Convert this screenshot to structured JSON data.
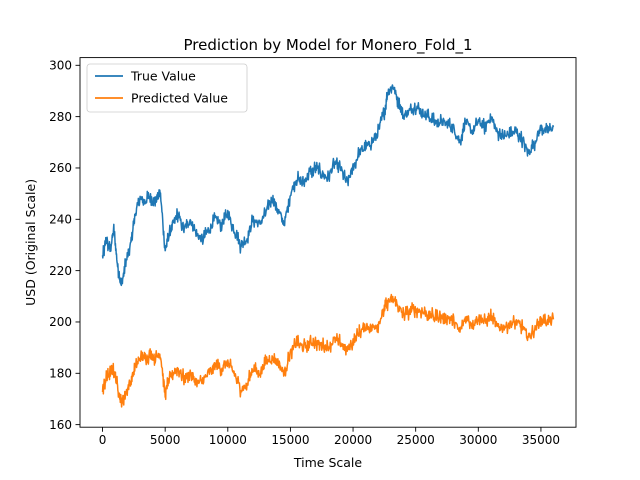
{
  "chart_data": {
    "type": "line",
    "title": "Prediction by Model for Monero_Fold_1",
    "xlabel": "Time Scale",
    "ylabel": "USD (Original Scale)",
    "xlim": [
      -1800,
      37800
    ],
    "ylim": [
      159,
      303
    ],
    "xticks": [
      0,
      5000,
      10000,
      15000,
      20000,
      25000,
      30000,
      35000
    ],
    "yticks": [
      160,
      180,
      200,
      220,
      240,
      260,
      280,
      300
    ],
    "legend_position": "upper-left",
    "grid": false,
    "series": [
      {
        "name": "True Value",
        "color": "#1f77b4",
        "x": [
          0,
          300,
          600,
          900,
          1200,
          1500,
          1800,
          2200,
          2600,
          3000,
          3400,
          3800,
          4200,
          4600,
          5000,
          5200,
          5600,
          6000,
          6500,
          7000,
          7500,
          8000,
          8500,
          9000,
          9500,
          10000,
          10500,
          11000,
          11500,
          12000,
          12500,
          13000,
          13500,
          14000,
          14500,
          15000,
          15500,
          16000,
          16500,
          17000,
          17500,
          18000,
          18500,
          19000,
          19500,
          20000,
          20500,
          21000,
          21500,
          22000,
          22500,
          22800,
          23200,
          23600,
          24000,
          24500,
          25000,
          25500,
          26000,
          26500,
          27000,
          27500,
          28000,
          28500,
          29000,
          29500,
          30000,
          30500,
          31000,
          31500,
          32000,
          32500,
          33000,
          33500,
          34000,
          34500,
          35000,
          35500,
          36000
        ],
        "values": [
          225,
          232,
          228,
          236,
          222,
          214,
          222,
          229,
          242,
          248,
          247,
          249,
          247,
          251,
          228,
          232,
          238,
          242,
          236,
          240,
          234,
          232,
          236,
          240,
          238,
          242,
          236,
          230,
          232,
          240,
          238,
          242,
          248,
          244,
          238,
          250,
          256,
          254,
          258,
          260,
          258,
          256,
          262,
          260,
          254,
          260,
          266,
          268,
          270,
          274,
          282,
          290,
          292,
          286,
          280,
          282,
          284,
          282,
          280,
          278,
          278,
          277,
          276,
          270,
          278,
          274,
          278,
          276,
          280,
          274,
          272,
          273,
          274,
          271,
          266,
          270,
          276,
          274,
          276
        ]
      },
      {
        "name": "Predicted Value",
        "color": "#ff7f0e",
        "x": [
          0,
          300,
          600,
          900,
          1200,
          1500,
          1800,
          2200,
          2600,
          3000,
          3400,
          3800,
          4200,
          4600,
          5000,
          5200,
          5600,
          6000,
          6500,
          7000,
          7500,
          8000,
          8500,
          9000,
          9500,
          10000,
          10500,
          11000,
          11500,
          12000,
          12500,
          13000,
          13500,
          14000,
          14500,
          15000,
          15500,
          16000,
          16500,
          17000,
          17500,
          18000,
          18500,
          19000,
          19500,
          20000,
          20500,
          21000,
          21500,
          22000,
          22500,
          22800,
          23200,
          23600,
          24000,
          24500,
          25000,
          25500,
          26000,
          26500,
          27000,
          27500,
          28000,
          28500,
          29000,
          29500,
          30000,
          30500,
          31000,
          31500,
          32000,
          32500,
          33000,
          33500,
          34000,
          34500,
          35000,
          35500,
          36000
        ],
        "values": [
          174,
          178,
          180,
          181,
          175,
          168,
          172,
          176,
          182,
          186,
          186,
          187,
          186,
          188,
          172,
          176,
          180,
          182,
          178,
          180,
          176,
          177,
          180,
          183,
          182,
          184,
          180,
          174,
          175,
          182,
          180,
          184,
          186,
          184,
          180,
          188,
          192,
          190,
          192,
          192,
          191,
          190,
          193,
          192,
          189,
          192,
          196,
          198,
          198,
          199,
          205,
          208,
          209,
          206,
          203,
          204,
          205,
          204,
          203,
          202,
          202,
          202,
          201,
          196,
          202,
          199,
          202,
          200,
          202,
          198,
          198,
          199,
          200,
          198,
          194,
          197,
          201,
          200,
          201
        ]
      }
    ]
  }
}
